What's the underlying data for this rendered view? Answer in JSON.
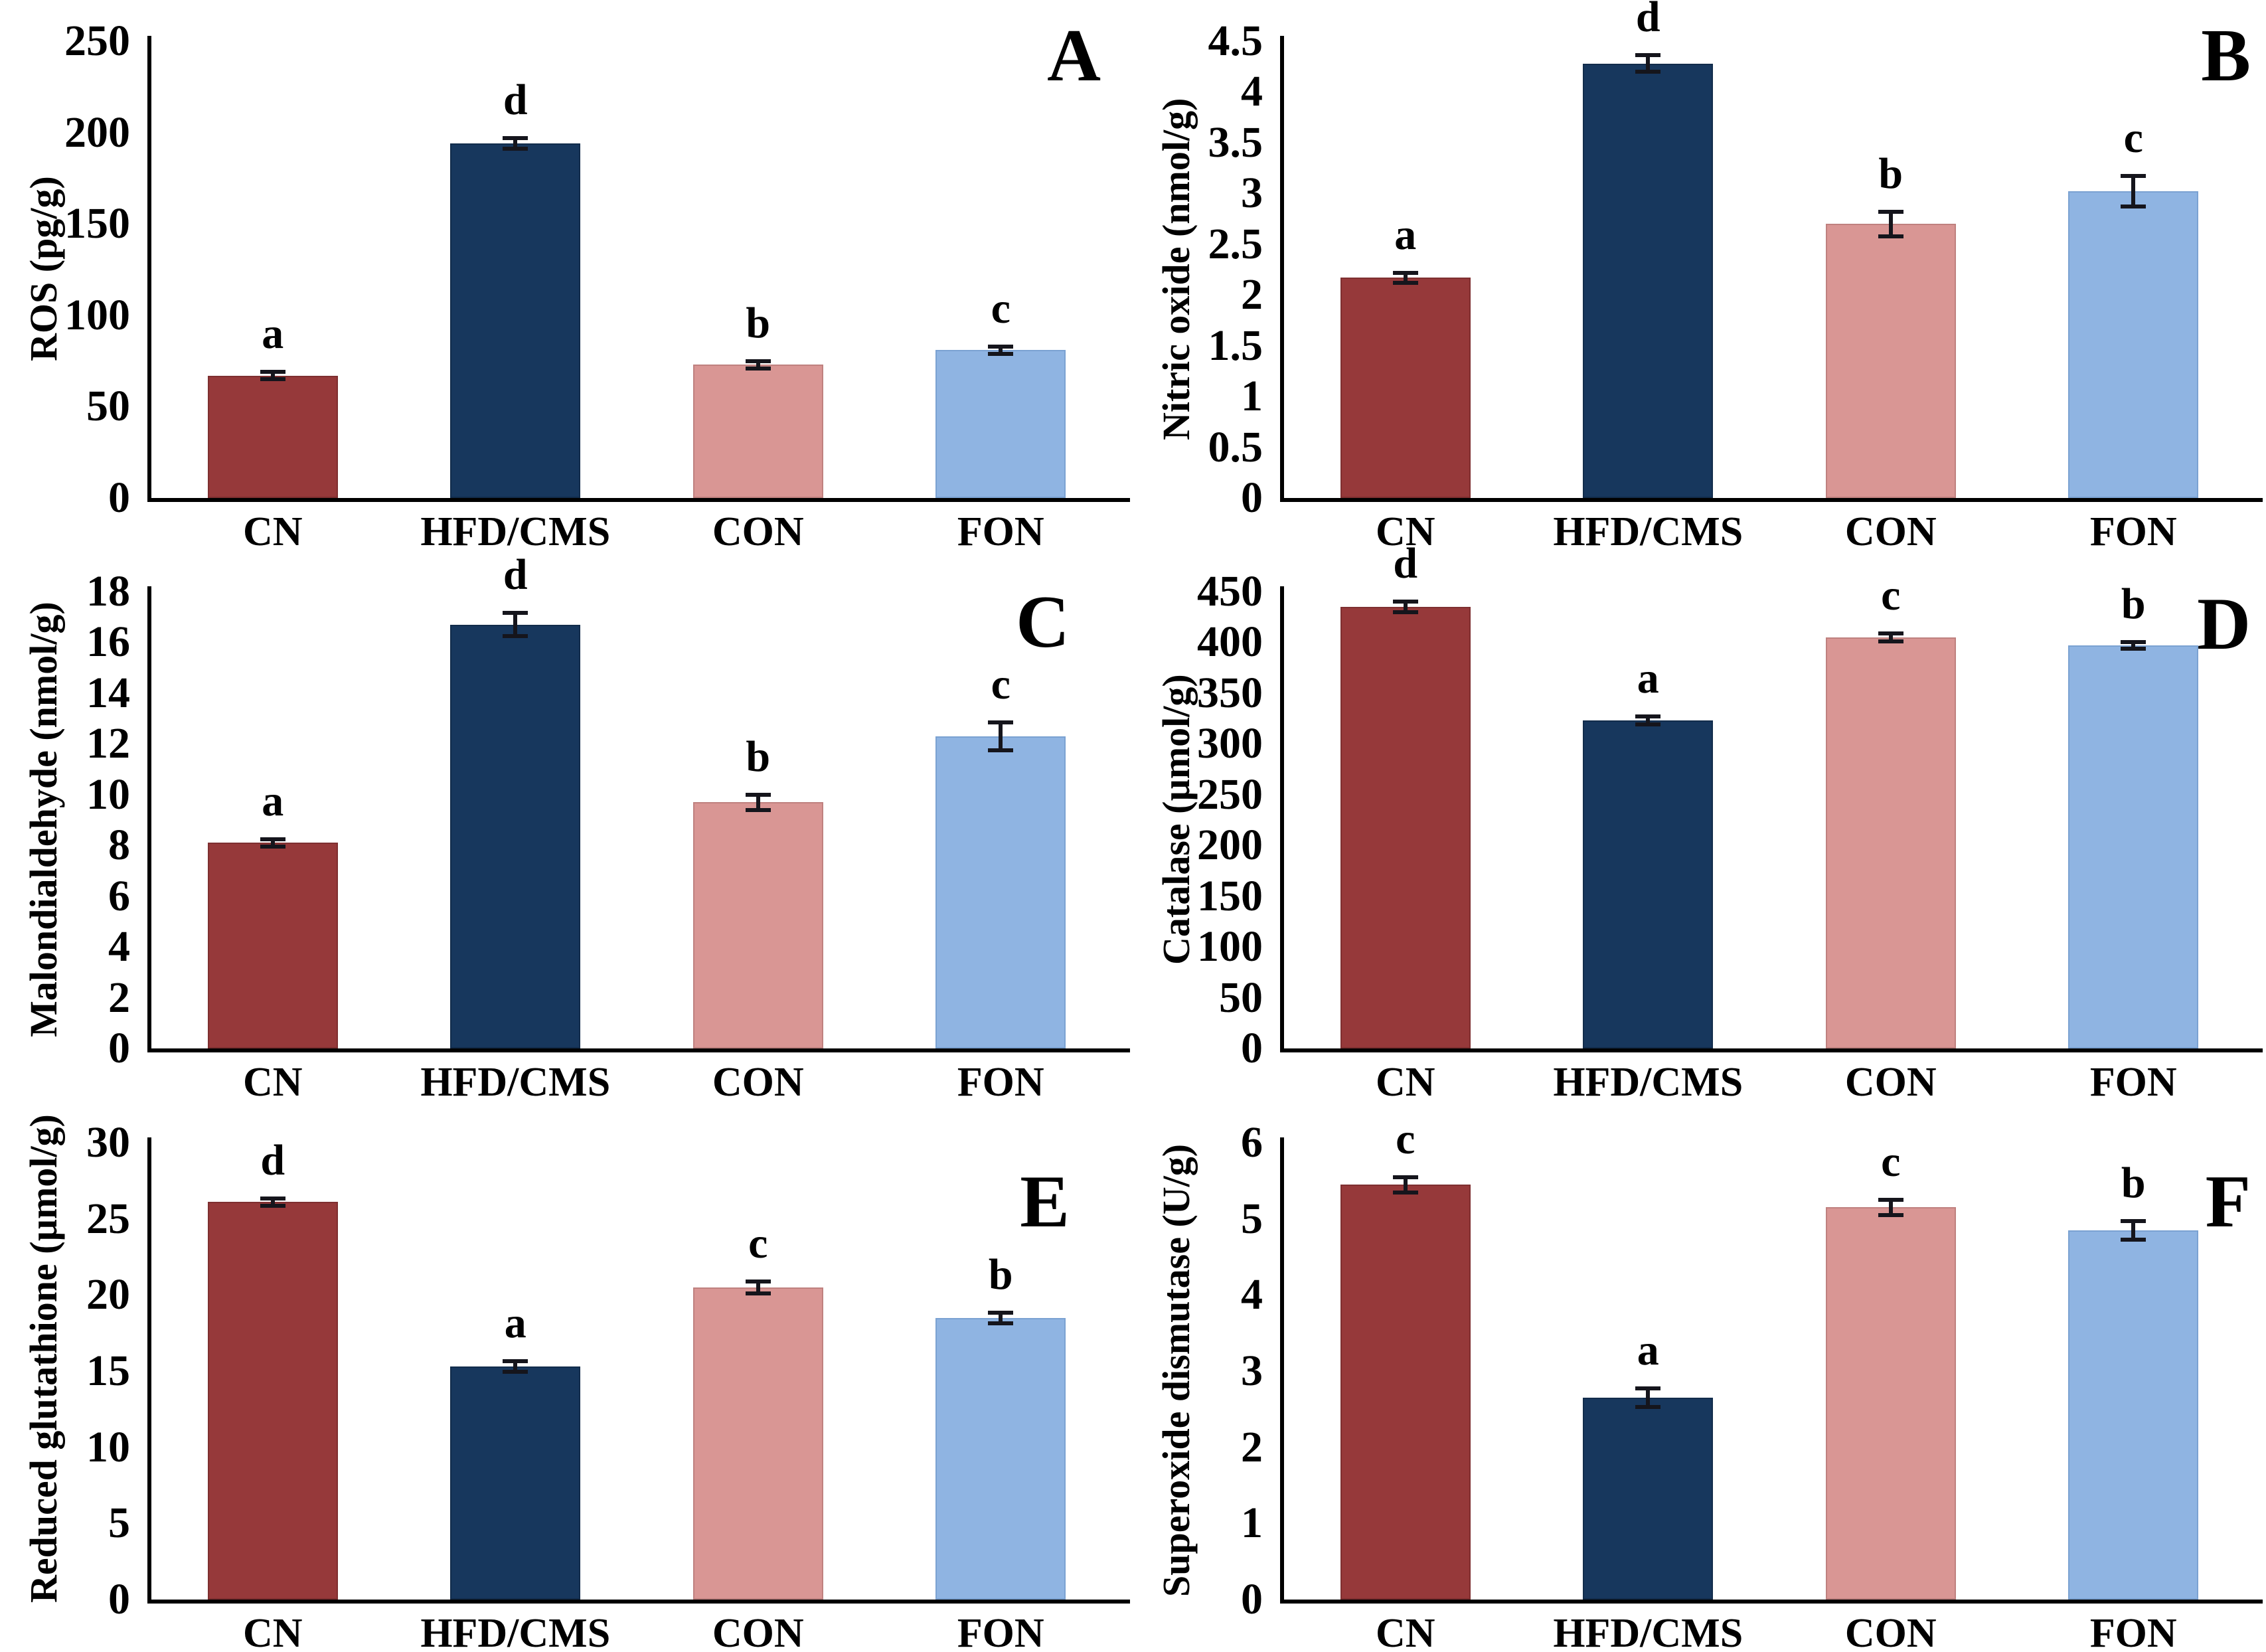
{
  "figure": {
    "categories": [
      "CN",
      "HFD/CMS",
      "CON",
      "FON"
    ],
    "bar_colors": [
      "#96393A",
      "#17375D",
      "#D99694",
      "#8FB4E2"
    ],
    "bar_border_colors": [
      "#7E2F30",
      "#122C4B",
      "#BF817F",
      "#7BA2D2"
    ],
    "error_bar_color": "#15151c",
    "axis_color": "#000000",
    "panel_letters": [
      "A",
      "B",
      "C",
      "D",
      "E",
      "F"
    ]
  },
  "chart_data": [
    {
      "type": "bar",
      "panel": "A",
      "ylabel": "ROS (pg/g)",
      "categories": [
        "CN",
        "HFD/CMS",
        "CON",
        "FON"
      ],
      "values": [
        67,
        194,
        73,
        81
      ],
      "errors": [
        2,
        3,
        2,
        2
      ],
      "sig_letters": [
        "a",
        "d",
        "b",
        "c"
      ],
      "ylim": [
        0,
        250
      ],
      "ytick_step": 50,
      "grid": false,
      "legend": "none"
    },
    {
      "type": "bar",
      "panel": "B",
      "ylabel": "Nitric oxide (nmol/g)",
      "categories": [
        "CN",
        "HFD/CMS",
        "CON",
        "FON"
      ],
      "values": [
        2.17,
        4.28,
        2.7,
        3.02
      ],
      "errors": [
        0.05,
        0.08,
        0.12,
        0.15
      ],
      "sig_letters": [
        "a",
        "d",
        "b",
        "c"
      ],
      "ylim": [
        0,
        4.5
      ],
      "ytick_step": 0.5,
      "grid": false,
      "legend": "none"
    },
    {
      "type": "bar",
      "panel": "C",
      "ylabel": "Malondialdehyde (nmol/g)",
      "categories": [
        "CN",
        "HFD/CMS",
        "CON",
        "FON"
      ],
      "values": [
        8.1,
        16.7,
        9.7,
        12.3
      ],
      "errors": [
        0.15,
        0.45,
        0.3,
        0.55
      ],
      "sig_letters": [
        "a",
        "d",
        "b",
        "c"
      ],
      "ylim": [
        0,
        18
      ],
      "ytick_step": 2,
      "grid": false,
      "legend": "none"
    },
    {
      "type": "bar",
      "panel": "D",
      "ylabel": "Catalase (µmol/g)",
      "categories": [
        "CN",
        "HFD/CMS",
        "CON",
        "FON"
      ],
      "values": [
        435,
        323,
        405,
        397
      ],
      "errors": [
        5,
        4,
        4,
        3
      ],
      "sig_letters": [
        "d",
        "a",
        "c",
        "b"
      ],
      "ylim": [
        0,
        450
      ],
      "ytick_step": 50,
      "grid": false,
      "legend": "none"
    },
    {
      "type": "bar",
      "panel": "E",
      "ylabel": "Reduced glutathione (µmol/g)",
      "categories": [
        "CN",
        "HFD/CMS",
        "CON",
        "FON"
      ],
      "values": [
        26.1,
        15.3,
        20.5,
        18.5
      ],
      "errors": [
        0.25,
        0.35,
        0.4,
        0.35
      ],
      "sig_letters": [
        "d",
        "a",
        "c",
        "b"
      ],
      "ylim": [
        0,
        30
      ],
      "ytick_step": 5,
      "grid": false,
      "legend": "none"
    },
    {
      "type": "bar",
      "panel": "F",
      "ylabel": "Superoxide dismutase (U/g)",
      "categories": [
        "CN",
        "HFD/CMS",
        "CON",
        "FON"
      ],
      "values": [
        5.45,
        2.65,
        5.15,
        4.85
      ],
      "errors": [
        0.1,
        0.12,
        0.1,
        0.12
      ],
      "sig_letters": [
        "c",
        "a",
        "c",
        "b"
      ],
      "ylim": [
        0,
        6
      ],
      "ytick_step": 1,
      "grid": false,
      "legend": "none"
    }
  ]
}
